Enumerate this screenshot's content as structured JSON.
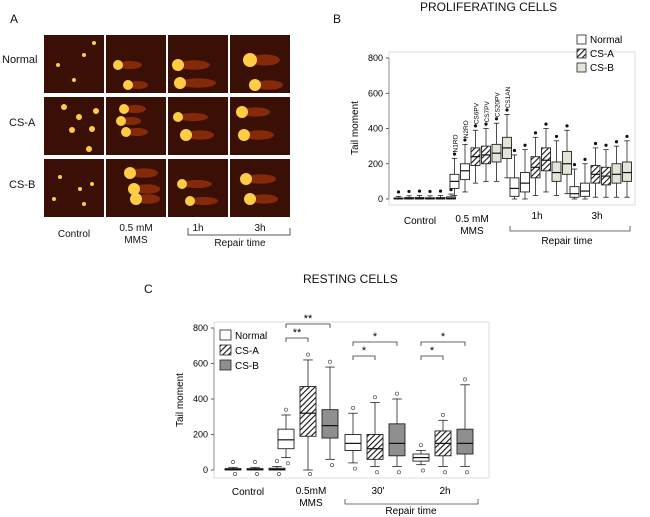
{
  "panel_a": {
    "letter": "A",
    "rows": [
      "Normal",
      "CS-A",
      "CS-B"
    ],
    "columns": [
      "Control",
      "0.5 mM\nMMS",
      "1h",
      "3h"
    ],
    "repair_label": "Repair time"
  },
  "panel_b": {
    "letter": "B",
    "title": "PROLIFERATING CELLS"
  },
  "panel_c": {
    "letter": "C",
    "title": "RESTING CELLS"
  },
  "chart_data": [
    {
      "type": "box",
      "title": "PROLIFERATING CELLS",
      "ylabel": "Tail  moment",
      "ylim": [
        0,
        800
      ],
      "yticks": [
        0,
        200,
        400,
        600,
        800
      ],
      "groups": [
        "Control",
        "0.5 mM\nMMS",
        "1h",
        "3h"
      ],
      "group_bracket_label": "Repair time",
      "legend": [
        "Normal",
        "CS-A",
        "CS-B"
      ],
      "legend_position": "top-right",
      "sample_labels": [
        "N1RO",
        "N2RO",
        "CS6PV",
        "CS7PV",
        "CS20PV",
        "CS1AN"
      ],
      "boxes": [
        {
          "group": "Control",
          "series": "Normal",
          "q1": 0,
          "median": 2,
          "q3": 6,
          "wlo": 0,
          "whi": 15
        },
        {
          "group": "Control",
          "series": "Normal",
          "q1": 0,
          "median": 3,
          "q3": 8,
          "wlo": 0,
          "whi": 18
        },
        {
          "group": "Control",
          "series": "CS-A",
          "q1": 0,
          "median": 3,
          "q3": 9,
          "wlo": 0,
          "whi": 20
        },
        {
          "group": "Control",
          "series": "CS-A",
          "q1": 0,
          "median": 2,
          "q3": 7,
          "wlo": 0,
          "whi": 18
        },
        {
          "group": "Control",
          "series": "CS-B",
          "q1": 0,
          "median": 3,
          "q3": 8,
          "wlo": 0,
          "whi": 20
        },
        {
          "group": "Control",
          "series": "CS-B",
          "q1": 0,
          "median": 4,
          "q3": 12,
          "wlo": 0,
          "whi": 28
        },
        {
          "group": "0.5 mM\nMMS",
          "series": "Normal",
          "q1": 60,
          "median": 100,
          "q3": 140,
          "wlo": 20,
          "whi": 230,
          "label": "N1RO"
        },
        {
          "group": "0.5 mM\nMMS",
          "series": "Normal",
          "q1": 110,
          "median": 160,
          "q3": 200,
          "wlo": 40,
          "whi": 310,
          "label": "N2RO"
        },
        {
          "group": "0.5 mM\nMMS",
          "series": "CS-A",
          "q1": 190,
          "median": 240,
          "q3": 290,
          "wlo": 90,
          "whi": 390,
          "label": "CS6PV"
        },
        {
          "group": "0.5 mM\nMMS",
          "series": "CS-A",
          "q1": 200,
          "median": 250,
          "q3": 300,
          "wlo": 100,
          "whi": 400,
          "label": "CS7PV"
        },
        {
          "group": "0.5 mM\nMMS",
          "series": "CS-B",
          "q1": 210,
          "median": 260,
          "q3": 310,
          "wlo": 100,
          "whi": 430,
          "label": "CS20PV"
        },
        {
          "group": "0.5 mM\nMMS",
          "series": "CS-B",
          "q1": 230,
          "median": 290,
          "q3": 350,
          "wlo": 120,
          "whi": 480,
          "label": "CS1AN"
        },
        {
          "group": "1h",
          "series": "Normal",
          "q1": 15,
          "median": 60,
          "q3": 120,
          "wlo": 0,
          "whi": 250
        },
        {
          "group": "1h",
          "series": "Normal",
          "q1": 40,
          "median": 90,
          "q3": 150,
          "wlo": 0,
          "whi": 280
        },
        {
          "group": "1h",
          "series": "CS-A",
          "q1": 120,
          "median": 180,
          "q3": 240,
          "wlo": 20,
          "whi": 350
        },
        {
          "group": "1h",
          "series": "CS-A",
          "q1": 160,
          "median": 220,
          "q3": 290,
          "wlo": 40,
          "whi": 400
        },
        {
          "group": "1h",
          "series": "CS-B",
          "q1": 100,
          "median": 150,
          "q3": 210,
          "wlo": 20,
          "whi": 330
        },
        {
          "group": "1h",
          "series": "CS-B",
          "q1": 140,
          "median": 200,
          "q3": 270,
          "wlo": 30,
          "whi": 390
        },
        {
          "group": "3h",
          "series": "Normal",
          "q1": 10,
          "median": 30,
          "q3": 70,
          "wlo": 0,
          "whi": 170
        },
        {
          "group": "3h",
          "series": "Normal",
          "q1": 15,
          "median": 45,
          "q3": 90,
          "wlo": 0,
          "whi": 200
        },
        {
          "group": "3h",
          "series": "CS-A",
          "q1": 90,
          "median": 140,
          "q3": 190,
          "wlo": 10,
          "whi": 290
        },
        {
          "group": "3h",
          "series": "CS-A",
          "q1": 80,
          "median": 130,
          "q3": 180,
          "wlo": 10,
          "whi": 280
        },
        {
          "group": "3h",
          "series": "CS-B",
          "q1": 90,
          "median": 140,
          "q3": 200,
          "wlo": 10,
          "whi": 300
        },
        {
          "group": "3h",
          "series": "CS-B",
          "q1": 100,
          "median": 150,
          "q3": 210,
          "wlo": 10,
          "whi": 330
        }
      ]
    },
    {
      "type": "box",
      "title": "RESTING CELLS",
      "ylabel": "Tail moment",
      "ylim": [
        0,
        800
      ],
      "yticks": [
        0,
        200,
        400,
        600,
        800
      ],
      "groups": [
        "Control",
        "0.5mM\nMMS",
        "30'",
        "2h"
      ],
      "group_bracket_label": "Repair time",
      "legend": [
        "Normal",
        "CS-A",
        "CS-B"
      ],
      "legend_position": "top-left",
      "significance": [
        {
          "group": "0.5mM\nMMS",
          "from": "Normal",
          "to": "CS-A",
          "label": "**"
        },
        {
          "group": "0.5mM\nMMS",
          "from": "Normal",
          "to": "CS-B",
          "label": "**"
        },
        {
          "group": "30'",
          "from": "Normal",
          "to": "CS-A",
          "label": "*"
        },
        {
          "group": "30'",
          "from": "Normal",
          "to": "CS-B",
          "label": "*"
        },
        {
          "group": "2h",
          "from": "Normal",
          "to": "CS-A",
          "label": "*"
        },
        {
          "group": "2h",
          "from": "Normal",
          "to": "CS-B",
          "label": "*"
        }
      ],
      "boxes": [
        {
          "group": "Control",
          "series": "Normal",
          "q1": 0,
          "median": 3,
          "q3": 8,
          "wlo": 0,
          "whi": 15
        },
        {
          "group": "Control",
          "series": "CS-A",
          "q1": 0,
          "median": 3,
          "q3": 8,
          "wlo": 0,
          "whi": 15
        },
        {
          "group": "Control",
          "series": "CS-B",
          "q1": 0,
          "median": 3,
          "q3": 10,
          "wlo": 0,
          "whi": 20
        },
        {
          "group": "0.5mM\nMMS",
          "series": "Normal",
          "q1": 120,
          "median": 170,
          "q3": 230,
          "wlo": 70,
          "whi": 310
        },
        {
          "group": "0.5mM\nMMS",
          "series": "CS-A",
          "q1": 190,
          "median": 320,
          "q3": 470,
          "wlo": 0,
          "whi": 620
        },
        {
          "group": "0.5mM\nMMS",
          "series": "CS-B",
          "q1": 180,
          "median": 250,
          "q3": 340,
          "wlo": 60,
          "whi": 580
        },
        {
          "group": "30'",
          "series": "Normal",
          "q1": 110,
          "median": 150,
          "q3": 200,
          "wlo": 40,
          "whi": 320
        },
        {
          "group": "30'",
          "series": "CS-A",
          "q1": 60,
          "median": 120,
          "q3": 200,
          "wlo": 20,
          "whi": 380
        },
        {
          "group": "30'",
          "series": "CS-B",
          "q1": 80,
          "median": 150,
          "q3": 260,
          "wlo": 20,
          "whi": 400
        },
        {
          "group": "2h",
          "series": "Normal",
          "q1": 50,
          "median": 70,
          "q3": 90,
          "wlo": 30,
          "whi": 110
        },
        {
          "group": "2h",
          "series": "CS-A",
          "q1": 80,
          "median": 150,
          "q3": 220,
          "wlo": 20,
          "whi": 280
        },
        {
          "group": "2h",
          "series": "CS-B",
          "q1": 90,
          "median": 150,
          "q3": 230,
          "wlo": 20,
          "whi": 480
        }
      ]
    }
  ],
  "colors": {
    "normal": "#ffffff",
    "cs_b_proliferating": "#e4e4d8",
    "cs_b_resting": "#8f8f8f",
    "comet_background": "#3a0f06",
    "comet_head": "#ffcc44",
    "comet_tail": "#c2410c"
  }
}
